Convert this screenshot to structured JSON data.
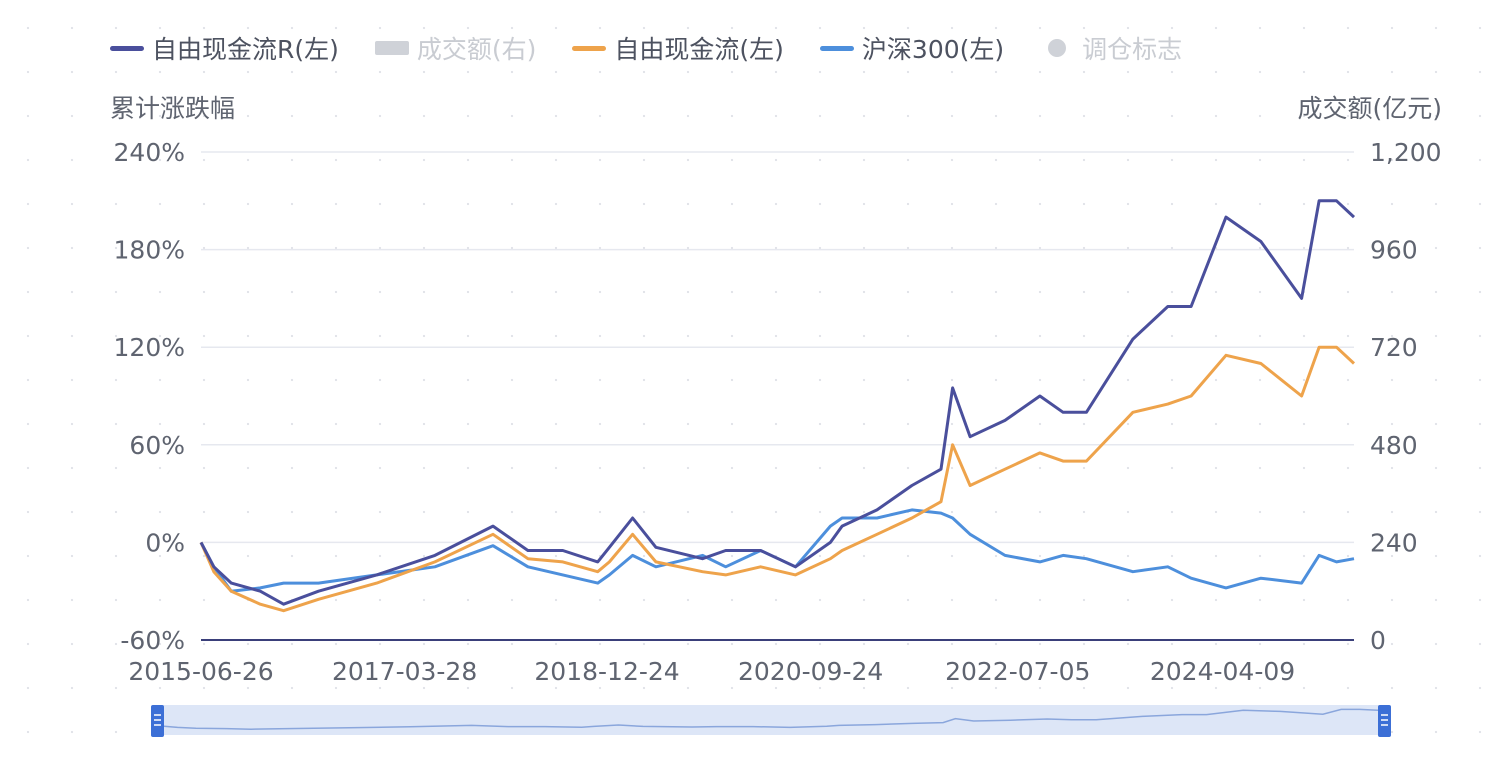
{
  "legend": [
    {
      "label": "自由现金流R(左)",
      "color": "#4a4f9c",
      "kind": "line",
      "active": true
    },
    {
      "label": "成交额(右)",
      "color": "#cfd2d8",
      "kind": "bar",
      "active": false
    },
    {
      "label": "自由现金流(左)",
      "color": "#eea34b",
      "kind": "line",
      "active": true
    },
    {
      "label": "沪深300(左)",
      "color": "#4d8fdc",
      "kind": "line",
      "active": true
    },
    {
      "label": "调仓标志",
      "color": "#cfd2d8",
      "kind": "dot",
      "active": false
    }
  ],
  "chart_data": {
    "type": "line",
    "y_left_title": "累计涨跌幅",
    "y_right_title": "成交额(亿元)",
    "y_left_ticks": [
      "240%",
      "180%",
      "120%",
      "60%",
      "0%",
      "-60%"
    ],
    "y_left_values": [
      240,
      180,
      120,
      60,
      0,
      -60
    ],
    "y_right_ticks": [
      "1,200",
      "960",
      "720",
      "480",
      "240",
      "0"
    ],
    "ylim_left": [
      -60,
      240
    ],
    "ylim_right": [
      0,
      1200
    ],
    "x_ticks": [
      "2015-06-26",
      "2017-03-28",
      "2018-12-24",
      "2020-09-24",
      "2022-07-05",
      "2024-04-09"
    ],
    "x_tick_years": [
      2015.49,
      2017.24,
      2018.98,
      2020.73,
      2022.51,
      2024.27
    ],
    "x_range_years": [
      2015.49,
      2025.4
    ],
    "grid": true,
    "series": [
      {
        "name": "自由现金流R(左)",
        "color": "#4a4f9c",
        "x": [
          2015.49,
          2015.6,
          2015.75,
          2016.0,
          2016.2,
          2016.5,
          2017.0,
          2017.5,
          2018.0,
          2018.3,
          2018.6,
          2018.9,
          2019.0,
          2019.2,
          2019.4,
          2019.8,
          2020.0,
          2020.3,
          2020.6,
          2020.9,
          2021.0,
          2021.3,
          2021.6,
          2021.85,
          2021.95,
          2022.1,
          2022.4,
          2022.7,
          2022.9,
          2023.1,
          2023.5,
          2023.8,
          2024.0,
          2024.3,
          2024.6,
          2024.95,
          2025.1,
          2025.25,
          2025.4
        ],
        "values": [
          0,
          -15,
          -25,
          -30,
          -38,
          -30,
          -20,
          -8,
          10,
          -5,
          -5,
          -12,
          -3,
          15,
          -3,
          -10,
          -5,
          -5,
          -15,
          0,
          10,
          20,
          35,
          45,
          95,
          65,
          75,
          90,
          80,
          80,
          125,
          145,
          145,
          200,
          185,
          150,
          210,
          210,
          200
        ]
      },
      {
        "name": "自由现金流(左)",
        "color": "#eea34b",
        "x": [
          2015.49,
          2015.6,
          2015.75,
          2016.0,
          2016.2,
          2016.5,
          2017.0,
          2017.5,
          2018.0,
          2018.3,
          2018.6,
          2018.9,
          2019.0,
          2019.2,
          2019.4,
          2019.8,
          2020.0,
          2020.3,
          2020.6,
          2020.9,
          2021.0,
          2021.3,
          2021.6,
          2021.85,
          2021.95,
          2022.1,
          2022.4,
          2022.7,
          2022.9,
          2023.1,
          2023.5,
          2023.8,
          2024.0,
          2024.3,
          2024.6,
          2024.95,
          2025.1,
          2025.25,
          2025.4
        ],
        "values": [
          0,
          -18,
          -30,
          -38,
          -42,
          -35,
          -25,
          -12,
          5,
          -10,
          -12,
          -18,
          -12,
          5,
          -12,
          -18,
          -20,
          -15,
          -20,
          -10,
          -5,
          5,
          15,
          25,
          60,
          35,
          45,
          55,
          50,
          50,
          80,
          85,
          90,
          115,
          110,
          90,
          120,
          120,
          110
        ]
      },
      {
        "name": "沪深300(左)",
        "color": "#4d8fdc",
        "x": [
          2015.49,
          2015.6,
          2015.75,
          2016.0,
          2016.2,
          2016.5,
          2017.0,
          2017.5,
          2018.0,
          2018.3,
          2018.6,
          2018.9,
          2019.0,
          2019.2,
          2019.4,
          2019.8,
          2020.0,
          2020.3,
          2020.6,
          2020.9,
          2021.0,
          2021.3,
          2021.6,
          2021.85,
          2021.95,
          2022.1,
          2022.4,
          2022.7,
          2022.9,
          2023.1,
          2023.5,
          2023.8,
          2024.0,
          2024.3,
          2024.6,
          2024.95,
          2025.1,
          2025.25,
          2025.4
        ],
        "values": [
          0,
          -15,
          -30,
          -28,
          -25,
          -25,
          -20,
          -15,
          -2,
          -15,
          -20,
          -25,
          -20,
          -8,
          -15,
          -8,
          -15,
          -5,
          -15,
          10,
          15,
          15,
          20,
          18,
          15,
          5,
          -8,
          -12,
          -8,
          -10,
          -18,
          -15,
          -22,
          -28,
          -22,
          -25,
          -8,
          -12,
          -10
        ]
      }
    ]
  }
}
